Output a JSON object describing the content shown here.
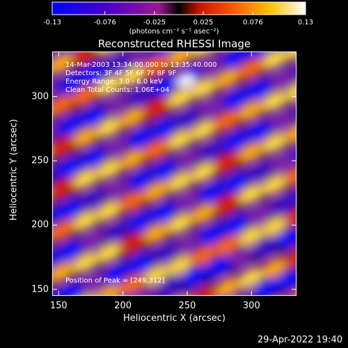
{
  "chart_data": {
    "type": "heatmap",
    "title": "Reconstructed RHESSI Image",
    "xlabel": "Heliocentric X (arcsec)",
    "ylabel": "Heliocentric Y (arcsec)",
    "xlim": [
      145,
      335
    ],
    "ylim": [
      145,
      335
    ],
    "x_ticks": [
      "150",
      "200",
      "250",
      "300"
    ],
    "x_tick_values": [
      150,
      200,
      250,
      300
    ],
    "y_ticks": [
      "150",
      "200",
      "250",
      "300"
    ],
    "y_tick_values": [
      150,
      200,
      250,
      300
    ],
    "colorbar": {
      "min": -0.13,
      "max": 0.13,
      "ticks": [
        "-0.13",
        "-0.076",
        "-0.025",
        "0.025",
        "0.076",
        "0.13"
      ],
      "tick_values": [
        -0.13,
        -0.076,
        -0.025,
        0.025,
        0.076,
        0.13
      ],
      "unit_label": "(photons cm⁻² s⁻¹ asec⁻²)"
    },
    "annotations": {
      "time": "14-Mar-2003 13:34:00.000 to 13:35:40.000",
      "detectors": "Detectors: 3F 4F 5F 6F 7F 8F 9F",
      "energy": "Energy Range: 3.0 - 6.0 keV",
      "method": "Clean     Total Counts: 1.06E+04",
      "peak": "Position of Peak = [249,312]"
    },
    "peak": [
      249,
      312
    ]
  },
  "datestamp": "29-Apr-2022 19:40"
}
